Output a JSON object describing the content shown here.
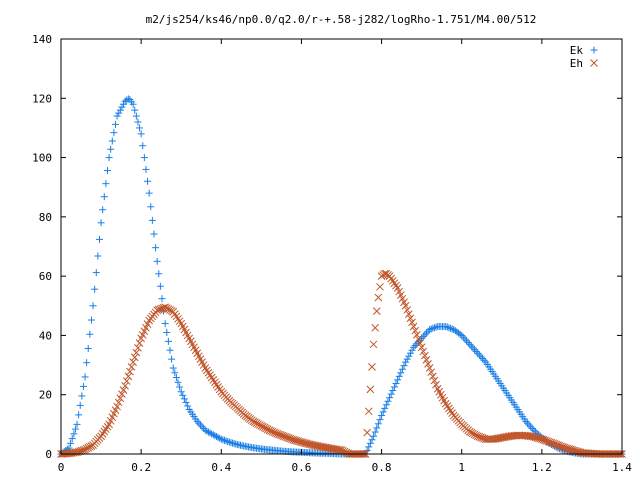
{
  "chart_data": {
    "type": "scatter",
    "title": "m2/js254/ks46/np0.0/q2.0/r-+.58-j282/logRho-1.751/M4.00/512",
    "xlabel": "",
    "ylabel": "",
    "xlim": [
      0,
      1.4
    ],
    "ylim": [
      0,
      140
    ],
    "xticks": [
      0,
      0.2,
      0.4,
      0.6,
      0.8,
      1,
      1.2,
      1.4
    ],
    "xtick_labels": [
      "0",
      "0.2",
      "0.4",
      "0.6",
      "0.8",
      "1",
      "1.2",
      "1.4"
    ],
    "yticks": [
      0,
      20,
      40,
      60,
      80,
      100,
      120,
      140
    ],
    "ytick_labels": [
      "0",
      "20",
      "40",
      "60",
      "80",
      "100",
      "120",
      "140"
    ],
    "grid": false,
    "legend_position": "top-right",
    "series": [
      {
        "name": "Ek",
        "color": "#1a7ee6",
        "marker": "plus",
        "x": [
          0,
          0.02,
          0.04,
          0.06,
          0.08,
          0.1,
          0.12,
          0.14,
          0.16,
          0.17,
          0.18,
          0.2,
          0.22,
          0.24,
          0.26,
          0.28,
          0.3,
          0.32,
          0.34,
          0.36,
          0.38,
          0.4,
          0.42,
          0.44,
          0.46,
          0.48,
          0.5,
          0.52,
          0.55,
          0.58,
          0.61,
          0.64,
          0.67,
          0.7,
          0.72,
          0.74,
          0.76,
          0.78,
          0.8,
          0.82,
          0.84,
          0.86,
          0.88,
          0.9,
          0.92,
          0.94,
          0.96,
          0.98,
          1.0,
          1.02,
          1.04,
          1.06,
          1.08,
          1.1,
          1.12,
          1.14,
          1.16,
          1.18,
          1.2,
          1.22,
          1.24,
          1.26,
          1.28,
          1.3,
          1.34,
          1.38,
          1.4
        ],
        "y": [
          0,
          2,
          10,
          26,
          50,
          78,
          100,
          114,
          119,
          120,
          118,
          108,
          88,
          65,
          44,
          29,
          21,
          15,
          11,
          8,
          6.5,
          5,
          4,
          3.2,
          2.6,
          2.1,
          1.7,
          1.4,
          1.0,
          0.7,
          0.5,
          0.3,
          0.2,
          0,
          0,
          0,
          0,
          6,
          13,
          19,
          25,
          31,
          36,
          39,
          42,
          43,
          43,
          42,
          40,
          37,
          34,
          31,
          27,
          23,
          19,
          15,
          11,
          8,
          5.5,
          3.5,
          2,
          1,
          0.4,
          0,
          0,
          0,
          0
        ]
      },
      {
        "name": "Eh",
        "color": "#c0562a",
        "marker": "cross",
        "x": [
          0,
          0.02,
          0.04,
          0.06,
          0.08,
          0.1,
          0.12,
          0.14,
          0.16,
          0.18,
          0.2,
          0.22,
          0.24,
          0.26,
          0.28,
          0.3,
          0.32,
          0.34,
          0.36,
          0.38,
          0.4,
          0.42,
          0.44,
          0.46,
          0.48,
          0.5,
          0.52,
          0.54,
          0.56,
          0.58,
          0.6,
          0.62,
          0.64,
          0.66,
          0.68,
          0.7,
          0.72,
          0.74,
          0.76,
          0.77,
          0.78,
          0.79,
          0.8,
          0.81,
          0.82,
          0.84,
          0.86,
          0.88,
          0.9,
          0.92,
          0.94,
          0.96,
          0.98,
          1.0,
          1.02,
          1.04,
          1.06,
          1.08,
          1.1,
          1.12,
          1.14,
          1.16,
          1.18,
          1.2,
          1.22,
          1.24,
          1.26,
          1.28,
          1.3,
          1.34,
          1.38,
          1.4
        ],
        "y": [
          0,
          0.2,
          0.6,
          1.5,
          3,
          6,
          10,
          16,
          23,
          31,
          39,
          45,
          48.5,
          49.5,
          48,
          44,
          39,
          34,
          29,
          25,
          21,
          18,
          15.5,
          13,
          11,
          9.5,
          8,
          6.8,
          5.8,
          4.8,
          4,
          3.3,
          2.7,
          2.2,
          1.7,
          1.3,
          0,
          0,
          0,
          18,
          37,
          51,
          60,
          61,
          60,
          56,
          50,
          43,
          36,
          29,
          22,
          17,
          13,
          10,
          7.5,
          6,
          5,
          5,
          5.5,
          6,
          6.3,
          6.2,
          5.8,
          5,
          4,
          3,
          2,
          1.2,
          0.4,
          0,
          0,
          0
        ]
      }
    ]
  }
}
